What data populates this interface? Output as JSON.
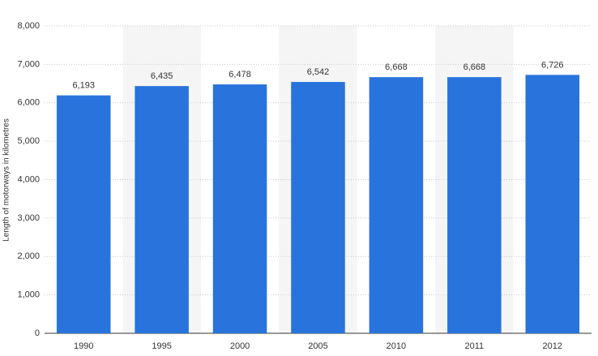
{
  "chart_data": {
    "type": "bar",
    "y_label": "Length of motorways in kilometres",
    "categories": [
      "1990",
      "1995",
      "2000",
      "2005",
      "2010",
      "2011",
      "2012"
    ],
    "values": [
      6193,
      6435,
      6478,
      6542,
      6668,
      6668,
      6726
    ],
    "value_labels": [
      "6,193",
      "6,435",
      "6,478",
      "6,542",
      "6,668",
      "6,668",
      "6,726"
    ],
    "color": "#2874dc",
    "ylim": [
      0,
      8000
    ],
    "yticks": [
      0,
      {
        "value": 1000,
        "label": "1,000"
      },
      {
        "value": 2000,
        "label": "2,000"
      },
      {
        "value": 3000,
        "label": "3,000"
      },
      {
        "value": 4000,
        "label": "4,000"
      },
      {
        "value": 5000,
        "label": "5,000"
      },
      {
        "value": 6000,
        "label": "6,000"
      },
      {
        "value": 7000,
        "label": "7,000"
      },
      {
        "value": 8000,
        "label": "8,000"
      }
    ],
    "grid": true
  }
}
